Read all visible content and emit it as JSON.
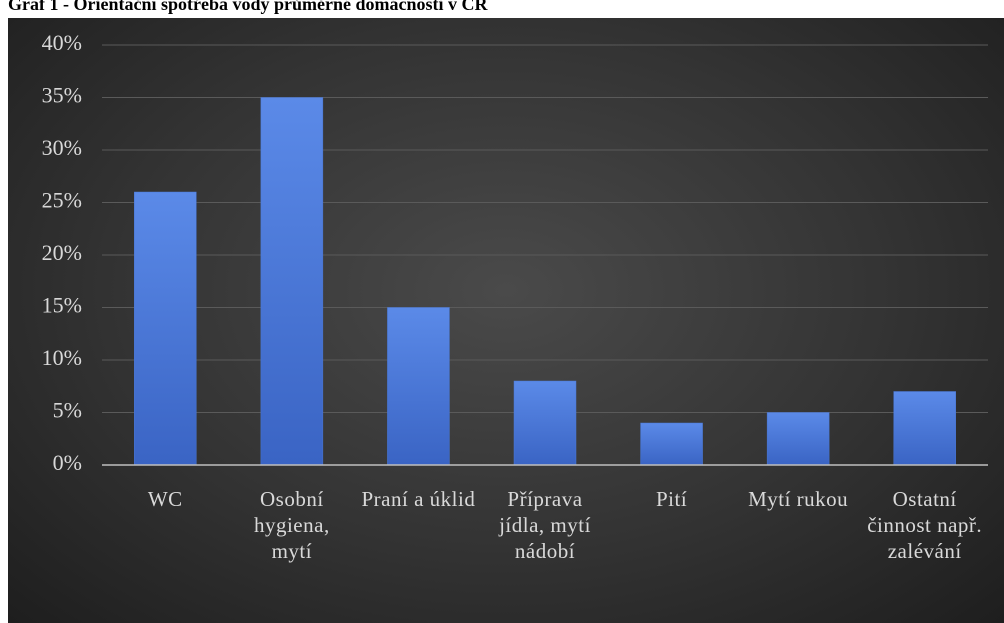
{
  "chart_data": {
    "type": "bar",
    "title": "Graf 1 - Orientační spotřeba vody průměrné domácnosti v ČR",
    "categories": [
      "WC",
      "Osobní hygiena, mytí",
      "Praní a úklid",
      "Příprava jídla, mytí nádobí",
      "Pití",
      "Mytí rukou",
      "Ostatní činnost např. zalévání"
    ],
    "values": [
      26,
      35,
      15,
      8,
      4,
      5,
      7
    ],
    "color": "#4a78d6",
    "ylim": [
      0,
      40
    ],
    "yticks": [
      {
        "value": 0,
        "label": "0%"
      },
      {
        "value": 5,
        "label": "5%"
      },
      {
        "value": 10,
        "label": "10%"
      },
      {
        "value": 15,
        "label": "15%"
      },
      {
        "value": 20,
        "label": "20%"
      },
      {
        "value": 25,
        "label": "25%"
      },
      {
        "value": 30,
        "label": "30%"
      },
      {
        "value": 35,
        "label": "35%"
      },
      {
        "value": 40,
        "label": "40%"
      }
    ],
    "grid": true
  }
}
